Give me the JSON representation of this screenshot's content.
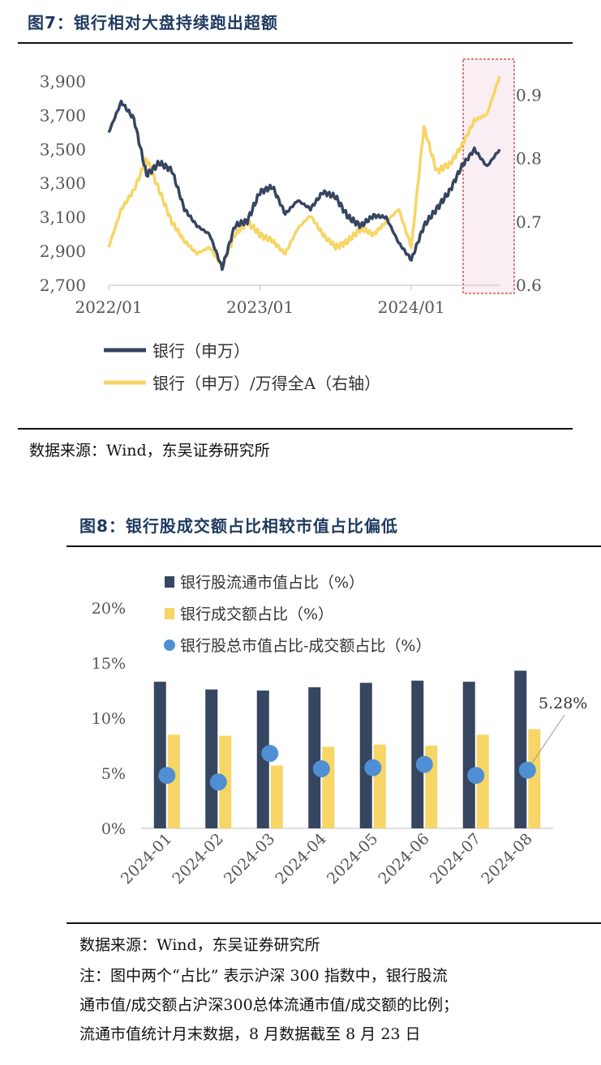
{
  "fig7": {
    "title": "图7：银行相对大盘持续跑出超额",
    "source": "数据来源：Wind，东吴证券研究所",
    "legend": [
      "银行（申万）",
      "银行（申万）/万得全A（右轴）"
    ],
    "colors": {
      "left": "#364560",
      "right": "#f7d566",
      "highlight_fill": "#f8eef3",
      "highlight_border": "#d43030"
    },
    "chart_data": {
      "type": "line",
      "title": "",
      "x_ticks": [
        "2022/01",
        "2023/01",
        "2024/01"
      ],
      "y_left": {
        "ticks": [
          "3,900",
          "3,700",
          "3,500",
          "3,300",
          "3,100",
          "2,900",
          "2,700"
        ],
        "range": [
          2700,
          3950
        ]
      },
      "y_right": {
        "ticks": [
          "0.9",
          "0.8",
          "0.7",
          "0.6"
        ],
        "range": [
          0.6,
          0.935
        ]
      },
      "series": [
        {
          "name": "银行（申万）",
          "axis": "left",
          "x": [
            "2022-01",
            "2022-02",
            "2022-03",
            "2022-04",
            "2022-05",
            "2022-06",
            "2022-07",
            "2022-08",
            "2022-09",
            "2022-10",
            "2022-11",
            "2022-12",
            "2023-01",
            "2023-02",
            "2023-03",
            "2023-04",
            "2023-05",
            "2023-06",
            "2023-07",
            "2023-08",
            "2023-09",
            "2023-10",
            "2023-11",
            "2023-12",
            "2024-01",
            "2024-02",
            "2024-03",
            "2024-04",
            "2024-05",
            "2024-06",
            "2024-07",
            "2024-08"
          ],
          "values": [
            3600,
            3780,
            3680,
            3350,
            3420,
            3380,
            3150,
            3050,
            3000,
            2800,
            3050,
            3080,
            3250,
            3280,
            3120,
            3200,
            3150,
            3250,
            3220,
            3100,
            3050,
            3110,
            3100,
            2950,
            2850,
            3050,
            3150,
            3250,
            3400,
            3500,
            3400,
            3500
          ]
        },
        {
          "name": "银行（申万）/万得全A（右轴）",
          "axis": "right",
          "x": [
            "2022-01",
            "2022-02",
            "2022-03",
            "2022-04",
            "2022-05",
            "2022-06",
            "2022-07",
            "2022-08",
            "2022-09",
            "2022-10",
            "2022-11",
            "2022-12",
            "2023-01",
            "2023-02",
            "2023-03",
            "2023-04",
            "2023-05",
            "2023-06",
            "2023-07",
            "2023-08",
            "2023-09",
            "2023-10",
            "2023-11",
            "2023-12",
            "2024-01",
            "2024-02",
            "2024-03",
            "2024-04",
            "2024-05",
            "2024-06",
            "2024-07",
            "2024-08"
          ],
          "values": [
            0.66,
            0.72,
            0.75,
            0.8,
            0.75,
            0.7,
            0.67,
            0.65,
            0.66,
            0.63,
            0.68,
            0.7,
            0.68,
            0.67,
            0.65,
            0.69,
            0.71,
            0.68,
            0.66,
            0.67,
            0.69,
            0.68,
            0.7,
            0.72,
            0.66,
            0.85,
            0.78,
            0.79,
            0.82,
            0.86,
            0.87,
            0.93
          ]
        }
      ],
      "highlight": {
        "from": "2024-05",
        "to": "2024-08"
      }
    }
  },
  "fig8": {
    "title": "图8：银行股成交额占比相较市值占比偏低",
    "legend": [
      "银行股流通市值占比（%）",
      "银行成交额占比（%）",
      "银行股总市值占比-成交额占比（%）"
    ],
    "source": "数据来源：Wind，东吴证券研究所",
    "note": [
      "注：图中两个“占比” 表示沪深 300 指数中，银行股流",
      "通市值/成交额占沪深300总体流通市值/成交额的比例；",
      "流通市值统计月末数据，8 月数据截至 8 月 23 日"
    ],
    "colors": {
      "bar1": "#364560",
      "bar2": "#f7d566",
      "dot": "#4f8fd4"
    },
    "chart_data": {
      "type": "bar",
      "title": "",
      "categories": [
        "2024-01",
        "2024-02",
        "2024-03",
        "2024-04",
        "2024-05",
        "2024-06",
        "2024-07",
        "2024-08"
      ],
      "y_ticks": [
        "0%",
        "5%",
        "10%",
        "15%",
        "20%"
      ],
      "ylim": [
        0,
        20
      ],
      "series": [
        {
          "name": "银行股流通市值占比（%）",
          "type": "bar",
          "values": [
            13.3,
            12.6,
            12.5,
            12.8,
            13.2,
            13.4,
            13.3,
            14.3
          ]
        },
        {
          "name": "银行成交额占比（%）",
          "type": "bar",
          "values": [
            8.5,
            8.4,
            5.7,
            7.4,
            7.6,
            7.5,
            8.5,
            9.0
          ]
        },
        {
          "name": "银行股总市值占比-成交额占比（%）",
          "type": "scatter",
          "values": [
            4.8,
            4.2,
            6.8,
            5.4,
            5.5,
            5.8,
            4.8,
            5.28
          ]
        }
      ],
      "annotation": {
        "text": "5.28%",
        "category": "2024-08"
      }
    }
  }
}
